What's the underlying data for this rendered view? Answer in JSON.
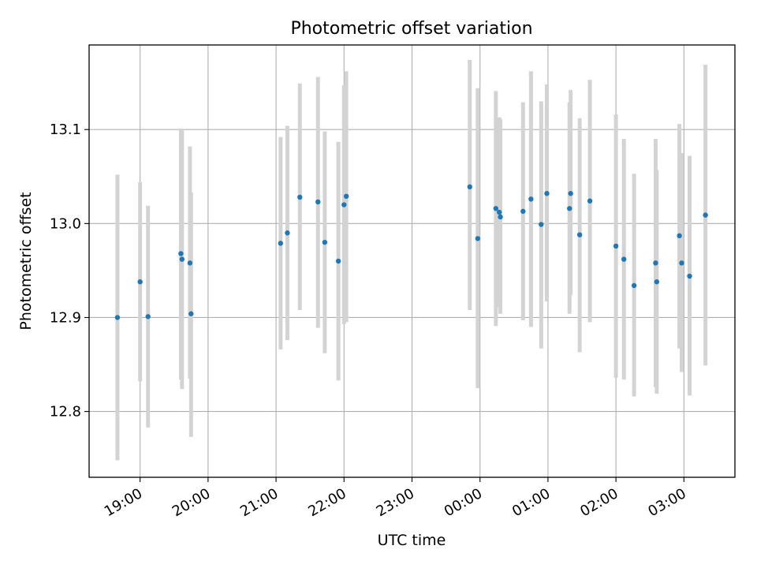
{
  "chart_data": {
    "type": "scatter",
    "title": "Photometric offset variation",
    "xlabel": "UTC time",
    "ylabel": "Photometric offset",
    "x_is_time": true,
    "xlim": [
      "18:15",
      "27:45"
    ],
    "ylim": [
      12.73,
      13.19
    ],
    "grid": true,
    "legend": "none",
    "x_ticks": [
      {
        "t": "19:00",
        "label": "19:00"
      },
      {
        "t": "20:00",
        "label": "20:00"
      },
      {
        "t": "21:00",
        "label": "21:00"
      },
      {
        "t": "22:00",
        "label": "22:00"
      },
      {
        "t": "23:00",
        "label": "23:00"
      },
      {
        "t": "24:00",
        "label": "00:00"
      },
      {
        "t": "25:00",
        "label": "01:00"
      },
      {
        "t": "26:00",
        "label": "02:00"
      },
      {
        "t": "27:00",
        "label": "03:00"
      }
    ],
    "y_ticks": [
      12.8,
      12.9,
      13.0,
      13.1
    ],
    "y_tick_labels": [
      "12.8",
      "12.9",
      "13.0",
      "13.1"
    ],
    "colors": {
      "points": "#1f77b4",
      "errorbars": "#d3d3d3",
      "grid": "#b0b0b0"
    },
    "points": [
      {
        "x": "18:40",
        "y": 12.9,
        "lo": 12.748,
        "hi": 13.052
      },
      {
        "x": "19:00",
        "y": 12.938,
        "lo": 12.832,
        "hi": 13.044
      },
      {
        "x": "19:07",
        "y": 12.901,
        "lo": 12.783,
        "hi": 13.019
      },
      {
        "x": "19:36",
        "y": 12.968,
        "lo": 12.834,
        "hi": 13.101
      },
      {
        "x": "19:37",
        "y": 12.962,
        "lo": 12.824,
        "hi": 13.099
      },
      {
        "x": "19:44",
        "y": 12.958,
        "lo": 12.835,
        "hi": 13.082
      },
      {
        "x": "19:45",
        "y": 12.904,
        "lo": 12.773,
        "hi": 13.033
      },
      {
        "x": "21:04",
        "y": 12.979,
        "lo": 12.866,
        "hi": 13.092
      },
      {
        "x": "21:10",
        "y": 12.99,
        "lo": 12.876,
        "hi": 13.104
      },
      {
        "x": "21:21",
        "y": 13.028,
        "lo": 12.908,
        "hi": 13.149
      },
      {
        "x": "21:37",
        "y": 13.023,
        "lo": 12.889,
        "hi": 13.156
      },
      {
        "x": "21:43",
        "y": 12.98,
        "lo": 12.862,
        "hi": 13.098
      },
      {
        "x": "21:55",
        "y": 12.96,
        "lo": 12.833,
        "hi": 13.087
      },
      {
        "x": "22:00",
        "y": 13.02,
        "lo": 12.893,
        "hi": 13.147
      },
      {
        "x": "22:02",
        "y": 13.029,
        "lo": 12.895,
        "hi": 13.162
      },
      {
        "x": "23:51",
        "y": 13.039,
        "lo": 12.908,
        "hi": 13.174
      },
      {
        "x": "23:58",
        "y": 12.984,
        "lo": 12.825,
        "hi": 13.144
      },
      {
        "x": "24:14",
        "y": 13.016,
        "lo": 12.891,
        "hi": 13.141
      },
      {
        "x": "24:17",
        "y": 13.012,
        "lo": 12.911,
        "hi": 13.113
      },
      {
        "x": "24:18",
        "y": 13.007,
        "lo": 12.904,
        "hi": 13.111
      },
      {
        "x": "24:38",
        "y": 13.013,
        "lo": 12.897,
        "hi": 13.129
      },
      {
        "x": "24:45",
        "y": 13.026,
        "lo": 12.89,
        "hi": 13.162
      },
      {
        "x": "24:54",
        "y": 12.999,
        "lo": 12.867,
        "hi": 13.13
      },
      {
        "x": "24:59",
        "y": 13.032,
        "lo": 12.917,
        "hi": 13.148
      },
      {
        "x": "25:19",
        "y": 13.016,
        "lo": 12.904,
        "hi": 13.129
      },
      {
        "x": "25:20",
        "y": 13.032,
        "lo": 12.924,
        "hi": 13.142
      },
      {
        "x": "25:28",
        "y": 12.988,
        "lo": 12.863,
        "hi": 13.112
      },
      {
        "x": "25:37",
        "y": 13.024,
        "lo": 12.895,
        "hi": 13.153
      },
      {
        "x": "26:00",
        "y": 12.976,
        "lo": 12.836,
        "hi": 13.116
      },
      {
        "x": "26:07",
        "y": 12.962,
        "lo": 12.834,
        "hi": 13.09
      },
      {
        "x": "26:16",
        "y": 12.934,
        "lo": 12.816,
        "hi": 13.053
      },
      {
        "x": "26:35",
        "y": 12.958,
        "lo": 12.826,
        "hi": 13.09
      },
      {
        "x": "26:36",
        "y": 12.938,
        "lo": 12.819,
        "hi": 13.057
      },
      {
        "x": "26:56",
        "y": 12.987,
        "lo": 12.867,
        "hi": 13.106
      },
      {
        "x": "26:58",
        "y": 12.958,
        "lo": 12.842,
        "hi": 13.075
      },
      {
        "x": "27:05",
        "y": 12.944,
        "lo": 12.817,
        "hi": 13.072
      },
      {
        "x": "27:19",
        "y": 13.009,
        "lo": 12.849,
        "hi": 13.169
      }
    ]
  }
}
